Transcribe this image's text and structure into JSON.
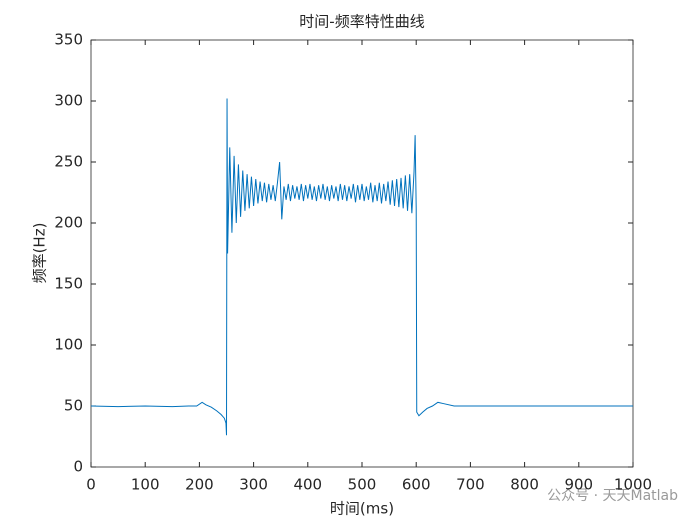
{
  "chart_data": {
    "type": "line",
    "title": "时间-频率特性曲线",
    "xlabel": "时间(ms)",
    "ylabel": "频率(Hz)",
    "watermark": "公众号 · 天天Matlab",
    "color": "#0072bd",
    "xlim": [
      0,
      1000
    ],
    "ylim": [
      0,
      350
    ],
    "xticks": [
      0,
      100,
      200,
      300,
      400,
      500,
      600,
      700,
      800,
      900,
      1000
    ],
    "yticks": [
      0,
      50,
      100,
      150,
      200,
      250,
      300,
      350
    ],
    "grid": false,
    "x": [
      0,
      50,
      100,
      150,
      180,
      195,
      205,
      212,
      222,
      232,
      240,
      246,
      249,
      250,
      251,
      252,
      256,
      260,
      264,
      268,
      272,
      276,
      280,
      284,
      288,
      292,
      296,
      300,
      304,
      308,
      312,
      316,
      320,
      324,
      328,
      332,
      336,
      340,
      344,
      348,
      352,
      356,
      360,
      364,
      368,
      372,
      376,
      380,
      384,
      388,
      392,
      396,
      400,
      404,
      408,
      412,
      416,
      420,
      424,
      428,
      432,
      436,
      440,
      444,
      448,
      452,
      456,
      460,
      464,
      468,
      472,
      476,
      480,
      484,
      488,
      492,
      496,
      500,
      504,
      508,
      512,
      516,
      520,
      524,
      528,
      532,
      536,
      540,
      544,
      548,
      552,
      556,
      560,
      564,
      568,
      572,
      576,
      580,
      584,
      588,
      592,
      596,
      598,
      600,
      601,
      605,
      612,
      620,
      630,
      640,
      650,
      670,
      700,
      800,
      900,
      1000
    ],
    "values": [
      50,
      49.5,
      50,
      49.5,
      50,
      50,
      53,
      51,
      49,
      46,
      43,
      40,
      36,
      26,
      302,
      175,
      262,
      192,
      255,
      200,
      248,
      205,
      243,
      210,
      240,
      212,
      238,
      214,
      236,
      216,
      234,
      218,
      233,
      217,
      232,
      219,
      231,
      218,
      233,
      250,
      203,
      230,
      219,
      232,
      218,
      231,
      220,
      230,
      219,
      232,
      218,
      231,
      220,
      232,
      219,
      230,
      218,
      231,
      220,
      232,
      219,
      230,
      218,
      231,
      220,
      230,
      218,
      232,
      219,
      231,
      218,
      230,
      220,
      232,
      217,
      231,
      219,
      232,
      218,
      230,
      219,
      233,
      217,
      231,
      218,
      233,
      216,
      232,
      218,
      234,
      215,
      235,
      214,
      236,
      213,
      237,
      212,
      239,
      210,
      240,
      208,
      242,
      272,
      212,
      45,
      42,
      45,
      48,
      50,
      53,
      52,
      50,
      50,
      50,
      50,
      50
    ]
  }
}
